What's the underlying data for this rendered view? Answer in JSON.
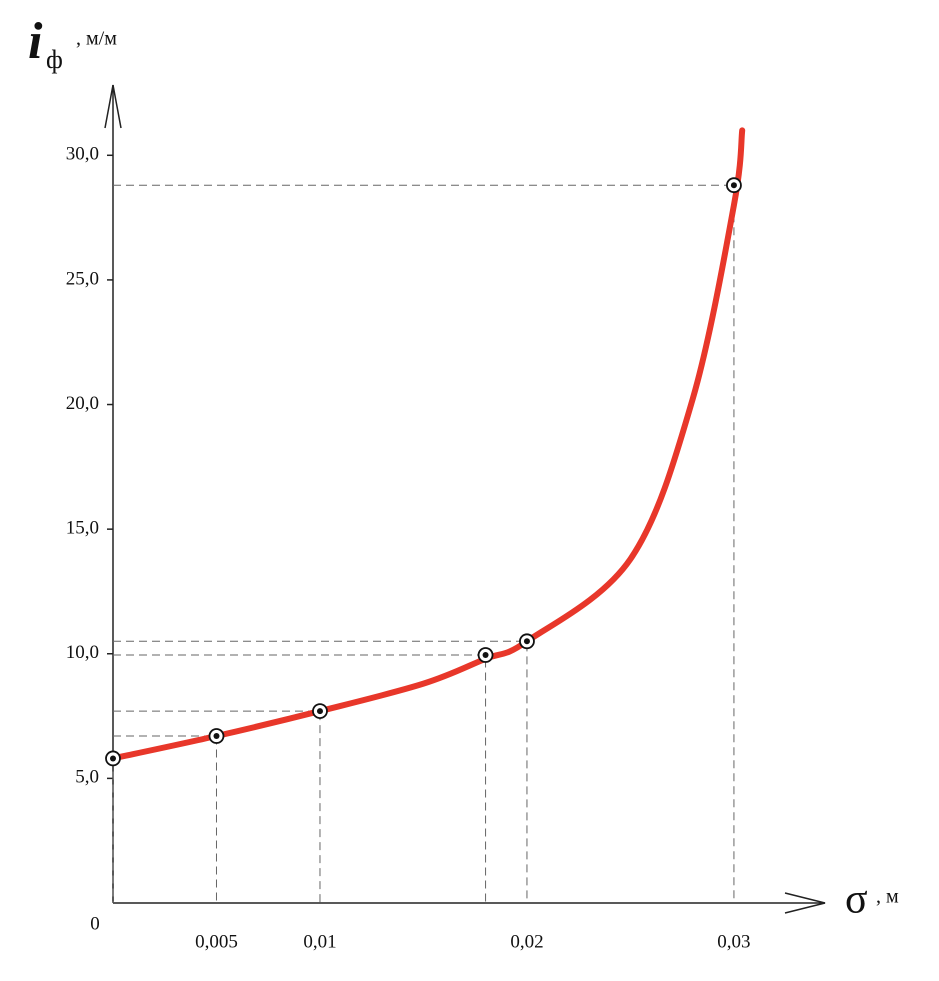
{
  "chart_data": {
    "type": "line",
    "ylabel": "i",
    "ylabel_sub": "ф",
    "yunit": ", м/м",
    "xlabel": "σ",
    "xunit": ", м",
    "x": [
      0,
      0.005,
      0.01,
      0.018,
      0.02,
      0.03
    ],
    "values": [
      5.8,
      6.7,
      7.7,
      9.95,
      10.5,
      28.8
    ],
    "curve": {
      "color": "#e8372a",
      "x": [
        0,
        0.005,
        0.01,
        0.015,
        0.018,
        0.02,
        0.025,
        0.028,
        0.03,
        0.0304
      ],
      "values": [
        5.8,
        6.7,
        7.7,
        8.8,
        9.8,
        10.5,
        13.8,
        20.2,
        28.0,
        31.0
      ]
    },
    "xlim": [
      0,
      0.0344
    ],
    "ylim": [
      0,
      32.7
    ],
    "xticks": [
      0,
      {
        "value": 0.005,
        "label": "0,005"
      },
      {
        "value": 0.01,
        "label": "0,01"
      },
      {
        "value": 0.02,
        "label": "0,02"
      },
      {
        "value": 0.03,
        "label": "0,03"
      }
    ],
    "yticks": [
      {
        "value": 5,
        "label": "5,0"
      },
      {
        "value": 10,
        "label": "10,0"
      },
      {
        "value": 15,
        "label": "15,0"
      },
      {
        "value": 20,
        "label": "20,0"
      },
      {
        "value": 25,
        "label": "25,0"
      },
      {
        "value": 30,
        "label": "30,0"
      }
    ]
  }
}
